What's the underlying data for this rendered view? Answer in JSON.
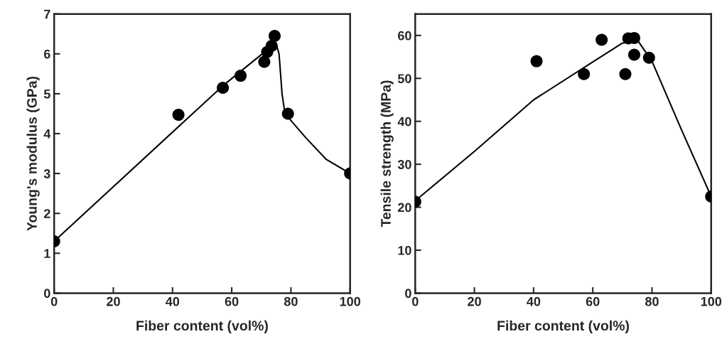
{
  "chart_data": [
    {
      "type": "scatter",
      "xlabel": "Fiber content (vol%)",
      "ylabel": "Young's modulus (GPa)",
      "xlim": [
        0,
        100
      ],
      "xticks": [
        0,
        20,
        40,
        60,
        80,
        100
      ],
      "ylim": [
        0,
        7
      ],
      "yticks": [
        0,
        1,
        2,
        3,
        4,
        5,
        6,
        7
      ],
      "grid": false,
      "legend": false,
      "series": [
        {
          "marker": "circle",
          "color": "#000000",
          "x": [
            0,
            42,
            57,
            63,
            71,
            72,
            73.5,
            74.5,
            79,
            100
          ],
          "values": [
            1.3,
            4.47,
            5.15,
            5.45,
            5.8,
            6.05,
            6.2,
            6.45,
            4.5,
            3.0
          ]
        },
        {
          "type": "line",
          "color": "#000000",
          "marker": "none",
          "line_style": "solid",
          "x": [
            0,
            57,
            72,
            75,
            76,
            77,
            78,
            85,
            92,
            100
          ],
          "values": [
            1.3,
            5.2,
            6.1,
            6.25,
            6.0,
            5.0,
            4.5,
            3.9,
            3.35,
            3.0
          ]
        }
      ]
    },
    {
      "type": "scatter",
      "xlabel": "Fiber content (vol%)",
      "ylabel": "Tensile strength (MPa)",
      "xlim": [
        0,
        100
      ],
      "xticks": [
        0,
        20,
        40,
        60,
        80,
        100
      ],
      "ylim": [
        0,
        65
      ],
      "yticks": [
        0,
        10,
        20,
        30,
        40,
        50,
        60
      ],
      "grid": false,
      "legend": false,
      "series": [
        {
          "marker": "circle",
          "color": "#000000",
          "x": [
            0,
            41,
            57,
            63,
            71,
            72,
            74,
            74,
            79,
            100
          ],
          "values": [
            21.3,
            54,
            51,
            59,
            51,
            59.3,
            59.4,
            55.5,
            54.8,
            22.5
          ]
        },
        {
          "type": "line",
          "color": "#000000",
          "marker": "none",
          "line_style": "solid",
          "x": [
            0,
            20,
            40,
            57,
            70,
            75,
            80,
            90,
            100
          ],
          "values": [
            21.5,
            33,
            45,
            52.5,
            58.2,
            59,
            54,
            38,
            22.5
          ]
        }
      ]
    }
  ]
}
